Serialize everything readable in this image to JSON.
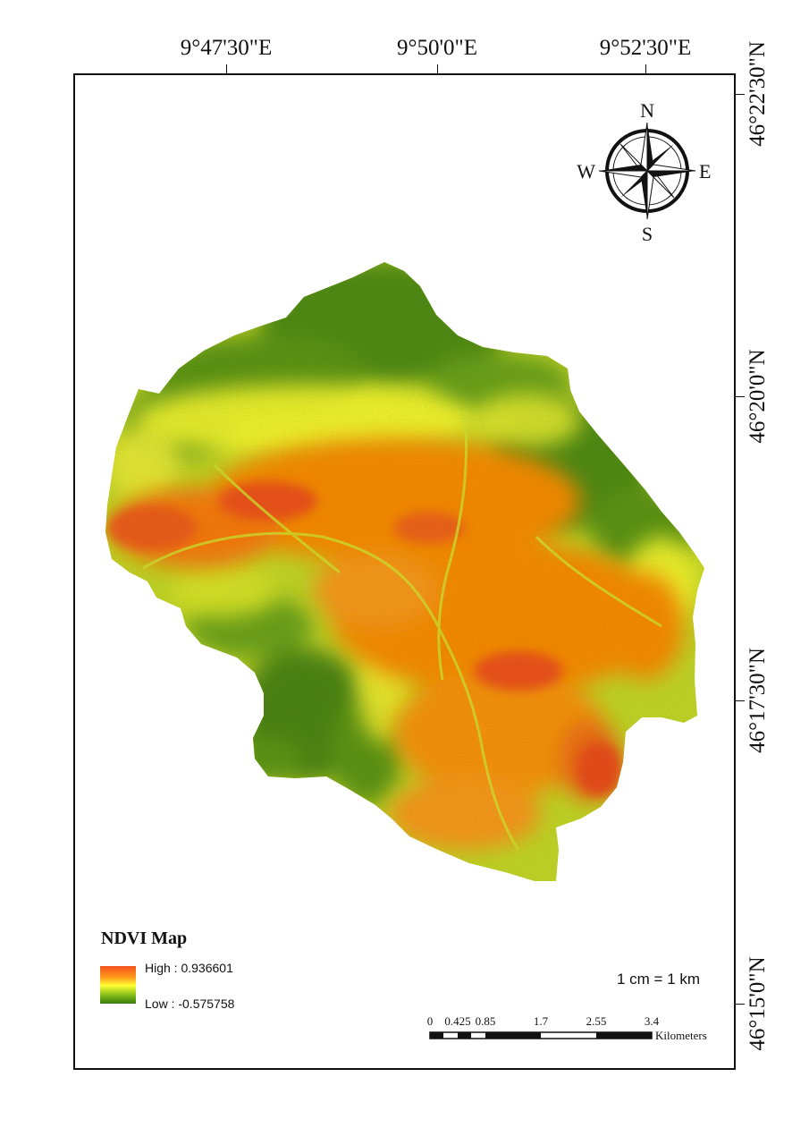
{
  "graticule": {
    "longitudes": [
      "9°47'30\"E",
      "9°50'0\"E",
      "9°52'30\"E"
    ],
    "latitudes": [
      "46°22'30\"N",
      "46°20'0\"N",
      "46°17'30\"N",
      "46°15'0\"N"
    ]
  },
  "compass": {
    "n": "N",
    "s": "S",
    "e": "E",
    "w": "W"
  },
  "legend": {
    "title": "NDVI Map",
    "high_label": "High : 0.936601",
    "low_label": "Low : -0.575758",
    "high_value": 0.936601,
    "low_value": -0.575758,
    "ramp_colors": [
      "#f4501e",
      "#ff9a1a",
      "#ffff33",
      "#8cc21a",
      "#3a7d10"
    ]
  },
  "scale": {
    "ratio_text": "1 cm = 1 km",
    "ticks": [
      "0",
      "0.425",
      "0.85",
      "1.7",
      "2.55",
      "3.4"
    ],
    "unit": "Kilometers"
  },
  "colors": {
    "low_ndvi": "#4e8c14",
    "mid_ndvi": "#ffff33",
    "high_ndvi": "#ff8c00",
    "very_high_ndvi": "#f4501e"
  }
}
